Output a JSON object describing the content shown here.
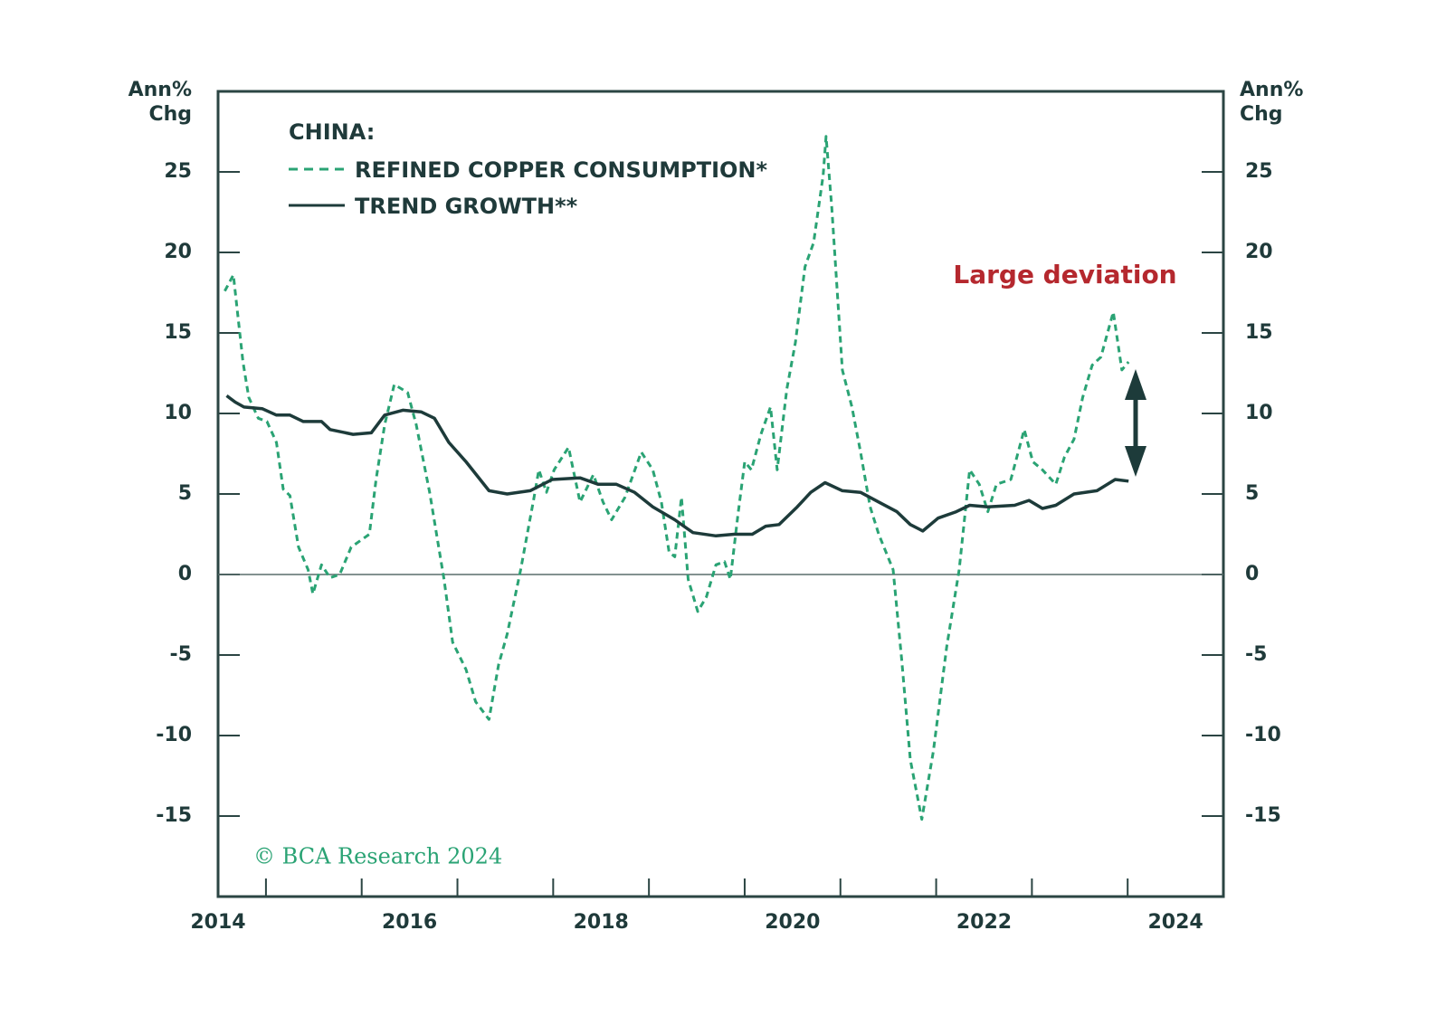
{
  "chart_data": {
    "type": "line",
    "ylabel": [
      "Ann%",
      "Chg"
    ],
    "y2label": [
      "Ann%",
      "Chg"
    ],
    "legend_title": "CHINA:",
    "annotation": "Large deviation",
    "source": "© BCA Research 2024",
    "xlim": [
      2014,
      2024.5
    ],
    "xticks": [
      2014,
      2016,
      2018,
      2020,
      2022,
      2024
    ],
    "xminor_ticks": [
      2014.5,
      2015.5,
      2016.5,
      2017.5,
      2018.5,
      2019.5,
      2020.5,
      2021.5,
      2022.5,
      2023.5
    ],
    "ylim": [
      -20,
      30
    ],
    "yticks": [
      -15,
      -10,
      -5,
      0,
      5,
      10,
      15,
      20,
      25
    ],
    "series": [
      {
        "name": "REFINED COPPER CONSUMPTION*",
        "color": "#2aa374",
        "style": "dashed",
        "x": [
          2014.07,
          2014.16,
          2014.26,
          2014.32,
          2014.42,
          2014.51,
          2014.61,
          2014.68,
          2014.75,
          2014.84,
          2014.94,
          2014.99,
          2015.08,
          2015.17,
          2015.27,
          2015.39,
          2015.58,
          2015.65,
          2015.74,
          2015.84,
          2015.98,
          2016.07,
          2016.21,
          2016.36,
          2016.45,
          2016.59,
          2016.69,
          2016.83,
          2016.93,
          2017.02,
          2017.16,
          2017.3,
          2017.35,
          2017.43,
          2017.51,
          2017.66,
          2017.78,
          2017.92,
          2018.02,
          2018.11,
          2018.25,
          2018.42,
          2018.54,
          2018.63,
          2018.71,
          2018.77,
          2018.84,
          2018.91,
          2019.01,
          2019.1,
          2019.2,
          2019.29,
          2019.35,
          2019.43,
          2019.5,
          2019.57,
          2019.67,
          2019.77,
          2019.84,
          2019.94,
          2020.03,
          2020.13,
          2020.22,
          2020.32,
          2020.35,
          2020.41,
          2020.52,
          2020.62,
          2020.71,
          2020.81,
          2020.9,
          2021.05,
          2021.14,
          2021.23,
          2021.35,
          2021.47,
          2021.61,
          2021.74,
          2021.85,
          2021.95,
          2022.04,
          2022.13,
          2022.28,
          2022.42,
          2022.51,
          2022.61,
          2022.75,
          2022.84,
          2022.94,
          2023.03,
          2023.13,
          2023.22,
          2023.35,
          2023.44,
          2023.51
        ],
        "values": [
          17.6,
          18.6,
          13.2,
          11,
          9.7,
          9.5,
          8.2,
          5.3,
          4.9,
          1.7,
          0.3,
          -1.2,
          0.6,
          -0.2,
          0,
          1.7,
          2.5,
          5.9,
          9.3,
          11.8,
          11.3,
          9.3,
          5.1,
          -0.3,
          -4.2,
          -5.9,
          -7.9,
          -9,
          -5.6,
          -3.7,
          0.3,
          4.8,
          6.5,
          5.1,
          6.5,
          7.9,
          4.5,
          6.2,
          4.5,
          3.4,
          4.8,
          7.6,
          6.5,
          4.5,
          1.4,
          1.1,
          4.8,
          -0.3,
          -2.3,
          -1.4,
          0.6,
          0.8,
          -0.3,
          3.7,
          7,
          6.5,
          8.7,
          10.4,
          6.5,
          11.5,
          14.4,
          19.1,
          20.6,
          24.8,
          27.2,
          22.8,
          12.7,
          10.4,
          7.6,
          4.2,
          2.5,
          0.3,
          -5.3,
          -11.5,
          -15.2,
          -11,
          -4.5,
          0.3,
          6.5,
          5.6,
          3.9,
          5.6,
          5.9,
          9,
          7,
          6.5,
          5.6,
          7.3,
          8.4,
          11,
          13,
          13.5,
          16.3,
          12.7,
          13.2
        ]
      },
      {
        "name": "TREND GROWTH**",
        "color": "#1d3b3a",
        "style": "solid",
        "x": [
          2014.09,
          2014.18,
          2014.27,
          2014.46,
          2014.61,
          2014.75,
          2014.89,
          2015.08,
          2015.17,
          2015.41,
          2015.6,
          2015.74,
          2015.93,
          2016.12,
          2016.26,
          2016.41,
          2016.59,
          2016.83,
          2017.02,
          2017.26,
          2017.49,
          2017.78,
          2017.97,
          2018.16,
          2018.35,
          2018.54,
          2018.77,
          2018.96,
          2019.2,
          2019.39,
          2019.58,
          2019.72,
          2019.86,
          2020.05,
          2020.19,
          2020.34,
          2020.52,
          2020.71,
          2020.9,
          2021.09,
          2021.23,
          2021.36,
          2021.52,
          2021.71,
          2021.85,
          2022.04,
          2022.32,
          2022.47,
          2022.61,
          2022.75,
          2022.94,
          2023.18,
          2023.37,
          2023.51
        ],
        "values": [
          11.1,
          10.7,
          10.4,
          10.3,
          9.9,
          9.9,
          9.5,
          9.5,
          9,
          8.7,
          8.8,
          9.9,
          10.2,
          10.1,
          9.7,
          8.2,
          7,
          5.2,
          5,
          5.2,
          5.9,
          6,
          5.6,
          5.6,
          5.1,
          4.2,
          3.4,
          2.6,
          2.4,
          2.5,
          2.5,
          3,
          3.1,
          4.2,
          5.1,
          5.7,
          5.2,
          5.1,
          4.5,
          3.9,
          3.1,
          2.7,
          3.5,
          3.9,
          4.3,
          4.2,
          4.3,
          4.6,
          4.1,
          4.3,
          5,
          5.2,
          5.9,
          5.8
        ]
      }
    ]
  }
}
